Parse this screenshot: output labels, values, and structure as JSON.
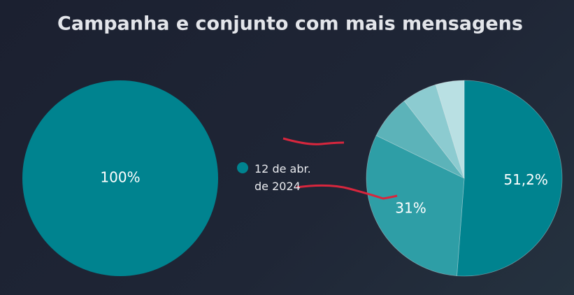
{
  "title": "Campanha e conjunto com mais mensagens",
  "chart_data": [
    {
      "type": "pie",
      "categories": [
        "12 de abr. de 2024"
      ],
      "values": [
        100
      ],
      "value_labels": [
        "100%"
      ],
      "colors": [
        "#00838f"
      ],
      "legend": "center"
    },
    {
      "type": "pie",
      "values": [
        51.2,
        31,
        7.3,
        5.8,
        4.7
      ],
      "value_labels": [
        "51,2%",
        "31%",
        null,
        null,
        null
      ],
      "colors": [
        "#00838f",
        "#2e9ea6",
        "#5cb3b9",
        "#8ccbd0",
        "#b9e0e3"
      ]
    }
  ]
}
